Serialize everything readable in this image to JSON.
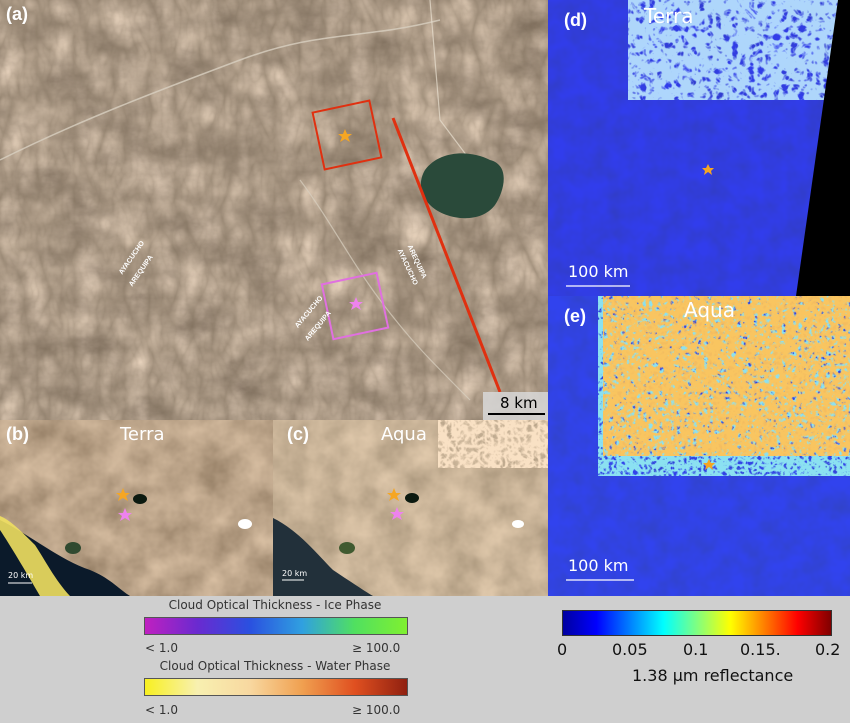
{
  "panel_a": {
    "label": "(a)",
    "scale_label": "8 km",
    "road_labels": [
      "AYACUCHO",
      "AREQUIPA",
      "AYACUCHO",
      "AREQUIPA",
      "AYACUCHO",
      "AREQUIPA"
    ]
  },
  "panel_b": {
    "label": "(b)",
    "title": "Terra",
    "scale_label": "20 km"
  },
  "panel_c": {
    "label": "(c)",
    "title": "Aqua",
    "scale_label": "20 km"
  },
  "panel_d": {
    "label": "(d)",
    "title": "Terra",
    "scale_label": "100 km"
  },
  "panel_e": {
    "label": "(e)",
    "title": "Aqua",
    "scale_label": "100 km"
  },
  "colorbar_ice": {
    "title": "Cloud Optical Thickness - Ice Phase",
    "min_label": "< 1.0",
    "max_label": "≥ 100.0",
    "colors": [
      "#c020c0",
      "#6a2ad0",
      "#2a50e0",
      "#30a0e0",
      "#50e060",
      "#80f030"
    ]
  },
  "colorbar_water": {
    "title": "Cloud Optical Thickness - Water Phase",
    "min_label": "< 1.0",
    "max_label": "≥ 100.0",
    "colors": [
      "#f8f020",
      "#f8f0b0",
      "#f8d8a0",
      "#f0a050",
      "#e05020",
      "#902010"
    ]
  },
  "colorbar_reflectance": {
    "label": "1.38 μm reflectance",
    "ticks": [
      "0",
      "0.05",
      "0.1",
      "0.15.",
      "0.2"
    ],
    "colors": [
      "#0000a0",
      "#0000ff",
      "#0080ff",
      "#00ffff",
      "#80ff80",
      "#ffff00",
      "#ff8000",
      "#ff0000",
      "#800000"
    ]
  },
  "markers": {
    "orange_star_color": "#f5a623",
    "pink_star_color": "#ee82ee",
    "red_box_color": "#e03010",
    "pink_box_color": "#e070e0"
  }
}
